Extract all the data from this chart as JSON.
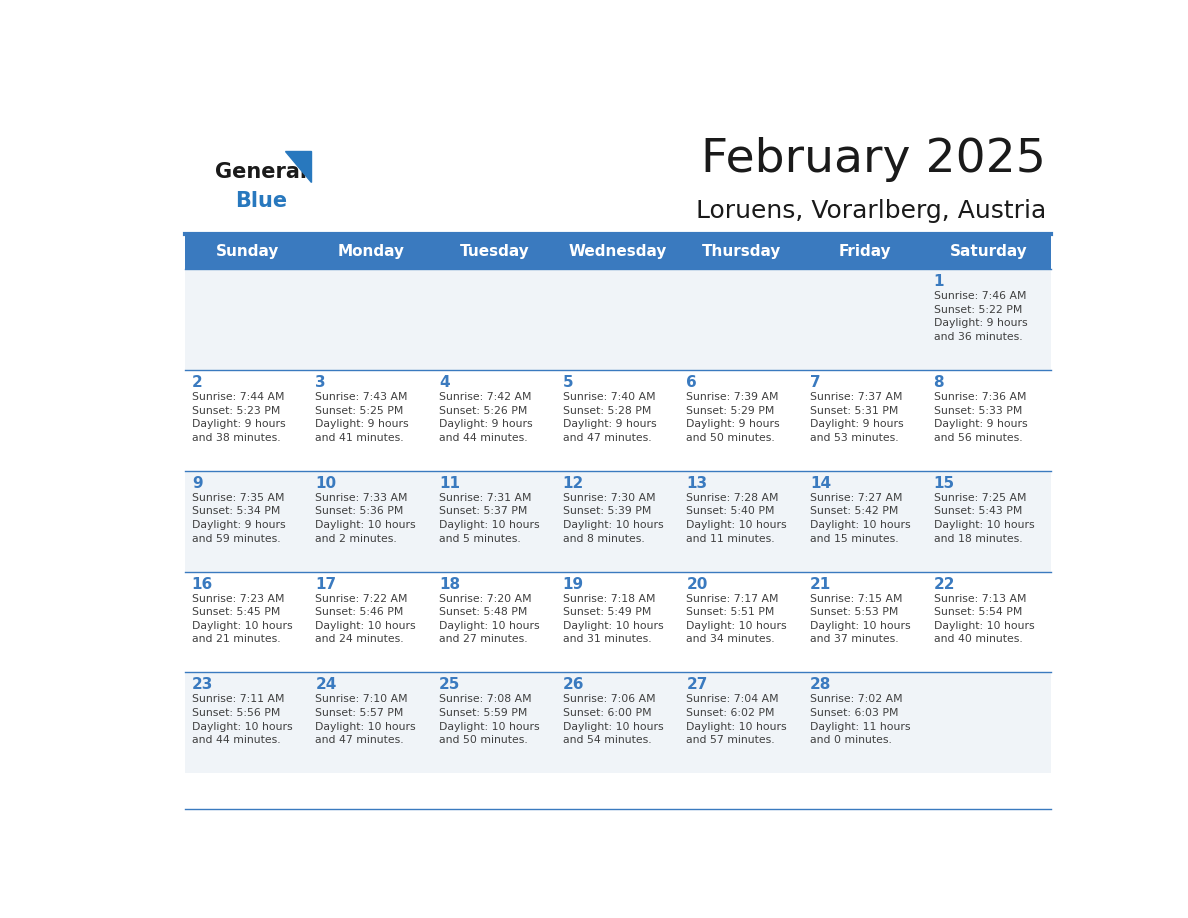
{
  "title": "February 2025",
  "subtitle": "Loruens, Vorarlberg, Austria",
  "header_bg_color": "#3a7abf",
  "header_text_color": "#ffffff",
  "day_names": [
    "Sunday",
    "Monday",
    "Tuesday",
    "Wednesday",
    "Thursday",
    "Friday",
    "Saturday"
  ],
  "row_bg_colors": [
    "#f0f4f8",
    "#ffffff"
  ],
  "cell_border_color": "#3a7abf",
  "day_number_color": "#3a7abf",
  "info_text_color": "#404040",
  "title_color": "#1a1a1a",
  "subtitle_color": "#1a1a1a",
  "logo_general_color": "#1a1a1a",
  "logo_blue_color": "#2878be",
  "calendar_data": [
    [
      {
        "day": 0,
        "info": ""
      },
      {
        "day": 0,
        "info": ""
      },
      {
        "day": 0,
        "info": ""
      },
      {
        "day": 0,
        "info": ""
      },
      {
        "day": 0,
        "info": ""
      },
      {
        "day": 0,
        "info": ""
      },
      {
        "day": 1,
        "info": "Sunrise: 7:46 AM\nSunset: 5:22 PM\nDaylight: 9 hours\nand 36 minutes."
      }
    ],
    [
      {
        "day": 2,
        "info": "Sunrise: 7:44 AM\nSunset: 5:23 PM\nDaylight: 9 hours\nand 38 minutes."
      },
      {
        "day": 3,
        "info": "Sunrise: 7:43 AM\nSunset: 5:25 PM\nDaylight: 9 hours\nand 41 minutes."
      },
      {
        "day": 4,
        "info": "Sunrise: 7:42 AM\nSunset: 5:26 PM\nDaylight: 9 hours\nand 44 minutes."
      },
      {
        "day": 5,
        "info": "Sunrise: 7:40 AM\nSunset: 5:28 PM\nDaylight: 9 hours\nand 47 minutes."
      },
      {
        "day": 6,
        "info": "Sunrise: 7:39 AM\nSunset: 5:29 PM\nDaylight: 9 hours\nand 50 minutes."
      },
      {
        "day": 7,
        "info": "Sunrise: 7:37 AM\nSunset: 5:31 PM\nDaylight: 9 hours\nand 53 minutes."
      },
      {
        "day": 8,
        "info": "Sunrise: 7:36 AM\nSunset: 5:33 PM\nDaylight: 9 hours\nand 56 minutes."
      }
    ],
    [
      {
        "day": 9,
        "info": "Sunrise: 7:35 AM\nSunset: 5:34 PM\nDaylight: 9 hours\nand 59 minutes."
      },
      {
        "day": 10,
        "info": "Sunrise: 7:33 AM\nSunset: 5:36 PM\nDaylight: 10 hours\nand 2 minutes."
      },
      {
        "day": 11,
        "info": "Sunrise: 7:31 AM\nSunset: 5:37 PM\nDaylight: 10 hours\nand 5 minutes."
      },
      {
        "day": 12,
        "info": "Sunrise: 7:30 AM\nSunset: 5:39 PM\nDaylight: 10 hours\nand 8 minutes."
      },
      {
        "day": 13,
        "info": "Sunrise: 7:28 AM\nSunset: 5:40 PM\nDaylight: 10 hours\nand 11 minutes."
      },
      {
        "day": 14,
        "info": "Sunrise: 7:27 AM\nSunset: 5:42 PM\nDaylight: 10 hours\nand 15 minutes."
      },
      {
        "day": 15,
        "info": "Sunrise: 7:25 AM\nSunset: 5:43 PM\nDaylight: 10 hours\nand 18 minutes."
      }
    ],
    [
      {
        "day": 16,
        "info": "Sunrise: 7:23 AM\nSunset: 5:45 PM\nDaylight: 10 hours\nand 21 minutes."
      },
      {
        "day": 17,
        "info": "Sunrise: 7:22 AM\nSunset: 5:46 PM\nDaylight: 10 hours\nand 24 minutes."
      },
      {
        "day": 18,
        "info": "Sunrise: 7:20 AM\nSunset: 5:48 PM\nDaylight: 10 hours\nand 27 minutes."
      },
      {
        "day": 19,
        "info": "Sunrise: 7:18 AM\nSunset: 5:49 PM\nDaylight: 10 hours\nand 31 minutes."
      },
      {
        "day": 20,
        "info": "Sunrise: 7:17 AM\nSunset: 5:51 PM\nDaylight: 10 hours\nand 34 minutes."
      },
      {
        "day": 21,
        "info": "Sunrise: 7:15 AM\nSunset: 5:53 PM\nDaylight: 10 hours\nand 37 minutes."
      },
      {
        "day": 22,
        "info": "Sunrise: 7:13 AM\nSunset: 5:54 PM\nDaylight: 10 hours\nand 40 minutes."
      }
    ],
    [
      {
        "day": 23,
        "info": "Sunrise: 7:11 AM\nSunset: 5:56 PM\nDaylight: 10 hours\nand 44 minutes."
      },
      {
        "day": 24,
        "info": "Sunrise: 7:10 AM\nSunset: 5:57 PM\nDaylight: 10 hours\nand 47 minutes."
      },
      {
        "day": 25,
        "info": "Sunrise: 7:08 AM\nSunset: 5:59 PM\nDaylight: 10 hours\nand 50 minutes."
      },
      {
        "day": 26,
        "info": "Sunrise: 7:06 AM\nSunset: 6:00 PM\nDaylight: 10 hours\nand 54 minutes."
      },
      {
        "day": 27,
        "info": "Sunrise: 7:04 AM\nSunset: 6:02 PM\nDaylight: 10 hours\nand 57 minutes."
      },
      {
        "day": 28,
        "info": "Sunrise: 7:02 AM\nSunset: 6:03 PM\nDaylight: 11 hours\nand 0 minutes."
      },
      {
        "day": 0,
        "info": ""
      }
    ]
  ]
}
